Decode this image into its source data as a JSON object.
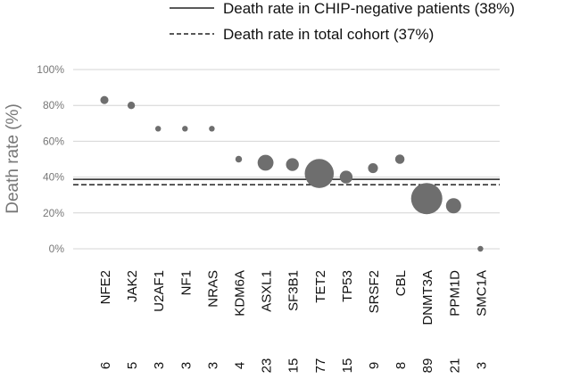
{
  "chart_data": {
    "type": "scatter",
    "ylabel": "Death rate (%)",
    "xlabel": "",
    "ylim": [
      0,
      100
    ],
    "ytick_labels": [
      "0%",
      "20%",
      "40%",
      "60%",
      "80%",
      "100%"
    ],
    "grid": true,
    "categories": [
      "NFE2",
      "JAK2",
      "U2AF1",
      "NF1",
      "NRAS",
      "KDM6A",
      "ASXL1",
      "SF3B1",
      "TET2",
      "TP53",
      "SRSF2",
      "CBL",
      "DNMT3A",
      "PPM1D",
      "SMC1A"
    ],
    "values": [
      83,
      80,
      67,
      67,
      67,
      50,
      48,
      47,
      42,
      40,
      45,
      50,
      28,
      24,
      0
    ],
    "counts": [
      "6",
      "5",
      "3",
      "3",
      "3",
      "4",
      "23",
      "15",
      "77",
      "15",
      "9",
      "8",
      "89",
      "21",
      "3"
    ],
    "reference_lines": [
      {
        "label": "Death rate in CHIP-negative patients (38%)",
        "value": 38,
        "style": "solid"
      },
      {
        "label": "Death rate in total cohort (37%)",
        "value": 37,
        "style": "dashed"
      }
    ],
    "marker_color": "#6e6e6e"
  }
}
